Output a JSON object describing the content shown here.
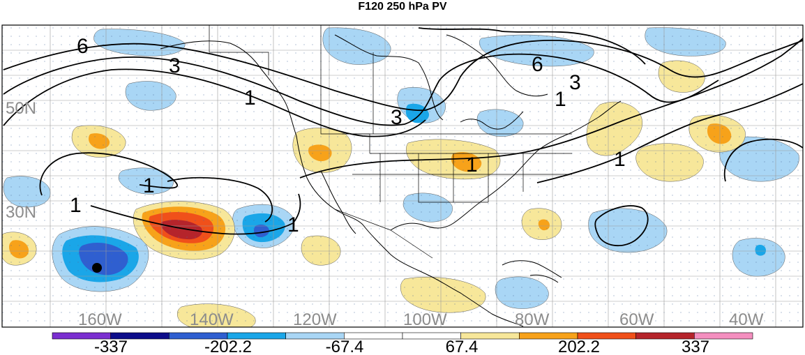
{
  "title": "F120 250 hPa PV",
  "latitude_labels": [
    "50N",
    "30N"
  ],
  "longitude_labels": [
    "160W",
    "140W",
    "120W",
    "100W",
    "80W",
    "60W",
    "40W"
  ],
  "contour_labels": [
    "6",
    "3",
    "1",
    "3",
    "6",
    "3",
    "1",
    "1",
    "1",
    "1",
    "1",
    "1"
  ],
  "colorbar": {
    "colors": [
      "#7b2fd0",
      "#0d0d8a",
      "#2f5fd0",
      "#1aa6e8",
      "#a9d6f5",
      "#ffffff",
      "#ffffff",
      "#f7e79a",
      "#f7a21a",
      "#f0501a",
      "#b5242b",
      "#f48fbf"
    ],
    "labels": [
      "-337",
      "-202.2",
      "-67.4",
      "67.4",
      "202.2",
      "337"
    ]
  },
  "colors": {
    "land_outline": "#000000",
    "grid": "#9a9a9a",
    "axis_label": "#8c8c8c",
    "contour": "#000000"
  }
}
